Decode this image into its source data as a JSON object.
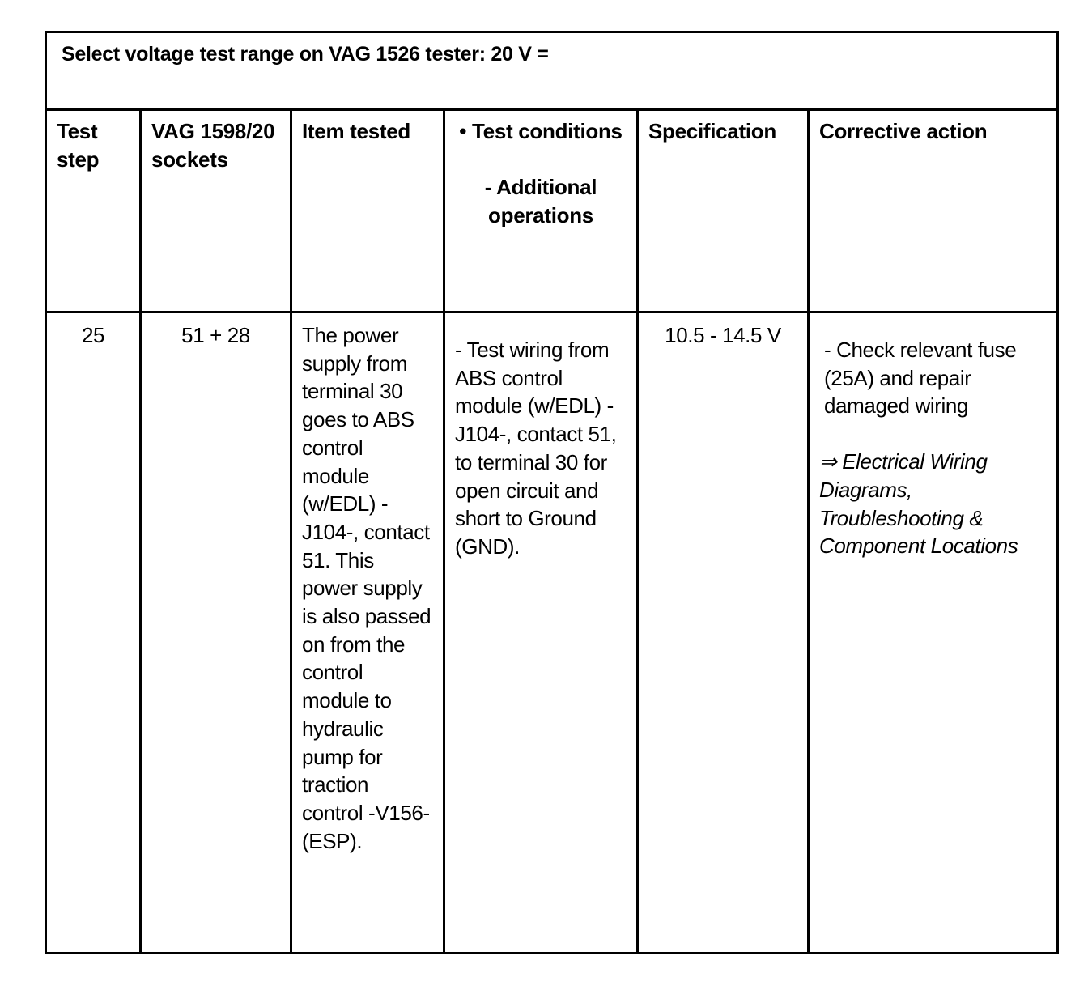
{
  "title": "Select voltage test range on VAG 1526 tester: 20 V =",
  "headers": {
    "test_step": "Test step",
    "sockets": "VAG 1598/20 sockets",
    "item_tested": "Item tested",
    "test_conditions_bullet": "•  Test conditions",
    "additional_operations": "- Additional operations",
    "specification": "Specification",
    "corrective_action": "Corrective action"
  },
  "rows": [
    {
      "test_step": "25",
      "sockets": "51 + 28",
      "item_tested": "The power supply from terminal 30 goes to ABS control module (w/EDL) -J104-, contact 51. This power supply is also passed on from the control module to hydraulic pump for traction control -V156- (ESP).",
      "test_conditions": "- Test wiring from ABS control module (w/EDL) -J104-, contact 51, to terminal 30 for open circuit and short to Ground (GND).",
      "specification": "10.5 - 14.5 V",
      "corrective_action": "- Check relevant fuse (25A) and repair damaged wiring",
      "reference": "⇒ Electrical Wiring Diagrams, Troubleshooting & Component Locations"
    }
  ]
}
